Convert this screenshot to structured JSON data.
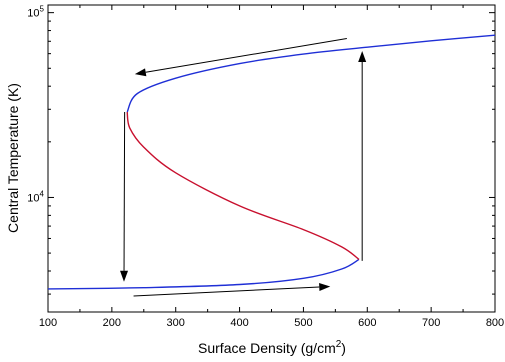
{
  "chart_data": {
    "type": "line",
    "title": "",
    "xlabel": "Surface Density (g/cm",
    "xlabel_sup": "2",
    "xlabel_close": ")",
    "ylabel": "Central Temperature (K)",
    "xlim": [
      100,
      800
    ],
    "ylim": [
      2400,
      110000
    ],
    "yscale": "log",
    "grid": false,
    "x_ticks": [
      100,
      200,
      300,
      400,
      500,
      600,
      700,
      800
    ],
    "x_tick_labels": [
      "100",
      "200",
      "300",
      "400",
      "500",
      "600",
      "700",
      "800"
    ],
    "y_ticks": [
      10000,
      100000
    ],
    "y_tick_labels": [
      {
        "base": "10",
        "exp": "4"
      },
      {
        "base": "10",
        "exp": "5"
      }
    ],
    "series": [
      {
        "branch": "lower-stable",
        "color": "#1f2fd6",
        "points": [
          [
            100,
            3200
          ],
          [
            250,
            3250
          ],
          [
            400,
            3380
          ],
          [
            500,
            3650
          ],
          [
            560,
            4100
          ],
          [
            587,
            4620
          ]
        ]
      },
      {
        "branch": "middle-unstable",
        "color": "#c8102e",
        "points": [
          [
            587,
            4620
          ],
          [
            560,
            5400
          ],
          [
            500,
            6700
          ],
          [
            400,
            9000
          ],
          [
            300,
            13600
          ],
          [
            250,
            18700
          ],
          [
            228,
            23800
          ],
          [
            224,
            29000
          ]
        ]
      },
      {
        "branch": "upper-stable",
        "color": "#1f2fd6",
        "points": [
          [
            224,
            29000
          ],
          [
            240,
            36500
          ],
          [
            300,
            44200
          ],
          [
            400,
            53000
          ],
          [
            500,
            59700
          ],
          [
            600,
            65000
          ],
          [
            700,
            70400
          ],
          [
            800,
            75500
          ]
        ]
      }
    ],
    "arrows": [
      {
        "from": [
          568,
          72500
        ],
        "to": [
          236,
          46500
        ]
      },
      {
        "from": [
          220,
          29000
        ],
        "to": [
          219,
          3500
        ]
      },
      {
        "from": [
          234,
          2930
        ],
        "to": [
          542,
          3300
        ]
      },
      {
        "from": [
          592,
          4540
        ],
        "to": [
          592,
          62000
        ]
      }
    ]
  }
}
